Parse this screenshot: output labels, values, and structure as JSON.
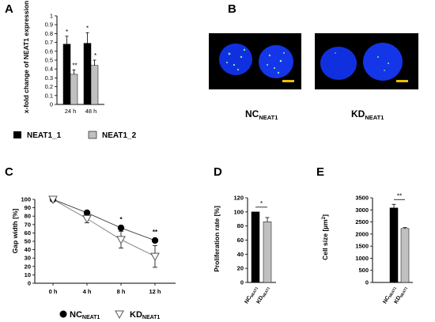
{
  "panels": [
    "A",
    "B",
    "C",
    "D",
    "E"
  ],
  "colors": {
    "black": "#000000",
    "grey": "#c0c0c0",
    "nucleus": "#1030e0",
    "spot": "#60ff90",
    "scale": "#e8c000"
  },
  "chart_data": [
    {
      "panel": "A",
      "type": "bar",
      "ylabel": "x-fold change of NEAT1 expression",
      "categories": [
        "24 h",
        "48 h"
      ],
      "ylim": [
        0,
        1
      ],
      "yticks": [
        "0",
        "0.1",
        "0.2",
        "0.3",
        "0.4",
        "0.5",
        "0.6",
        "0.7",
        "0.8",
        "0.9",
        "1"
      ],
      "series": [
        {
          "name": "NEAT1_1",
          "color": "#000000",
          "values": [
            0.68,
            0.69
          ],
          "errors": [
            0.09,
            0.12
          ]
        },
        {
          "name": "NEAT1_2",
          "color": "#c0c0c0",
          "values": [
            0.34,
            0.44
          ],
          "errors": [
            0.05,
            0.06
          ]
        }
      ],
      "significance": [
        "*",
        "**",
        "*",
        "*"
      ]
    },
    {
      "panel": "C",
      "type": "line",
      "ylabel": "Gap width [%]",
      "x": [
        "0 h",
        "4 h",
        "8 h",
        "12 h"
      ],
      "ylim": [
        0,
        100
      ],
      "yticks": [
        "0",
        "10",
        "20",
        "30",
        "40",
        "50",
        "60",
        "70",
        "80",
        "90",
        "100"
      ],
      "series": [
        {
          "name": "NC",
          "sub": "NEAT1",
          "marker": "circle",
          "values": [
            100,
            84,
            66,
            51
          ],
          "errors": [
            0,
            2,
            2,
            2
          ]
        },
        {
          "name": "KD",
          "sub": "NEAT1",
          "marker": "triangle",
          "values": [
            100,
            77,
            52,
            32
          ],
          "errors": [
            0,
            5,
            10,
            13
          ]
        }
      ],
      "significance": [
        {
          "x": "8 h",
          "text": "*"
        },
        {
          "x": "12 h",
          "text": "**"
        }
      ]
    },
    {
      "panel": "D",
      "type": "bar",
      "ylabel": "Proliferation rate [%]",
      "categories": [
        "NC",
        "KD"
      ],
      "category_sub": "NEAT1",
      "ylim": [
        0,
        120
      ],
      "yticks": [
        "0",
        "20",
        "40",
        "60",
        "80",
        "100",
        "120"
      ],
      "values": [
        100,
        86
      ],
      "colors": [
        "#000000",
        "#c0c0c0"
      ],
      "errors": [
        0,
        6
      ],
      "significance": "*"
    },
    {
      "panel": "E",
      "type": "bar",
      "ylabel": "Cell size [µm",
      "ylabel_sup": "2",
      "ylabel_end": "]",
      "categories": [
        "NC",
        "KD"
      ],
      "category_sub": "NEAT1",
      "ylim": [
        0,
        3500
      ],
      "yticks": [
        "0",
        "500",
        "1000",
        "1500",
        "2000",
        "2500",
        "3000",
        "3500"
      ],
      "values": [
        3080,
        2230
      ],
      "colors": [
        "#000000",
        "#c0c0c0"
      ],
      "errors": [
        150,
        40
      ],
      "significance": "**"
    }
  ],
  "microscopy": {
    "labels": [
      {
        "main": "NC",
        "sub": "NEAT1"
      },
      {
        "main": "KD",
        "sub": "NEAT1"
      }
    ]
  }
}
